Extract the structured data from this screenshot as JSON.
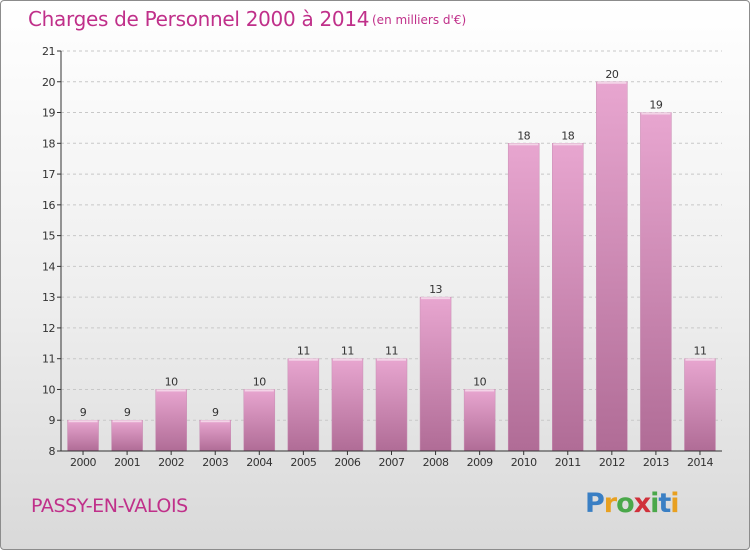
{
  "header": {
    "title": "Charges de Personnel 2000 à 2014",
    "subtitle": "(en milliers d'€)"
  },
  "footer": {
    "commune": "PASSY-EN-VALOIS",
    "logo_text": "Proxiti"
  },
  "colors": {
    "title": "#c0308a",
    "bar_top": "#e8a6d0",
    "bar_bottom": "#b06c96",
    "axis": "#333333",
    "grid": "#c8c8c8"
  },
  "chart_data": {
    "type": "bar",
    "title": "Charges de Personnel 2000 à 2014",
    "subtitle": "(en milliers d'€)",
    "categories": [
      "2000",
      "2001",
      "2002",
      "2003",
      "2004",
      "2005",
      "2006",
      "2007",
      "2008",
      "2009",
      "2010",
      "2011",
      "2012",
      "2013",
      "2014"
    ],
    "values": [
      9,
      9,
      10,
      9,
      10,
      11,
      11,
      11,
      13,
      10,
      18,
      18,
      20,
      19,
      11
    ],
    "ylim": [
      8,
      21
    ],
    "yticks": [
      8,
      9,
      10,
      11,
      12,
      13,
      14,
      15,
      16,
      17,
      18,
      19,
      20,
      21
    ],
    "grid": "horizontal dashed",
    "data_labels": true
  }
}
